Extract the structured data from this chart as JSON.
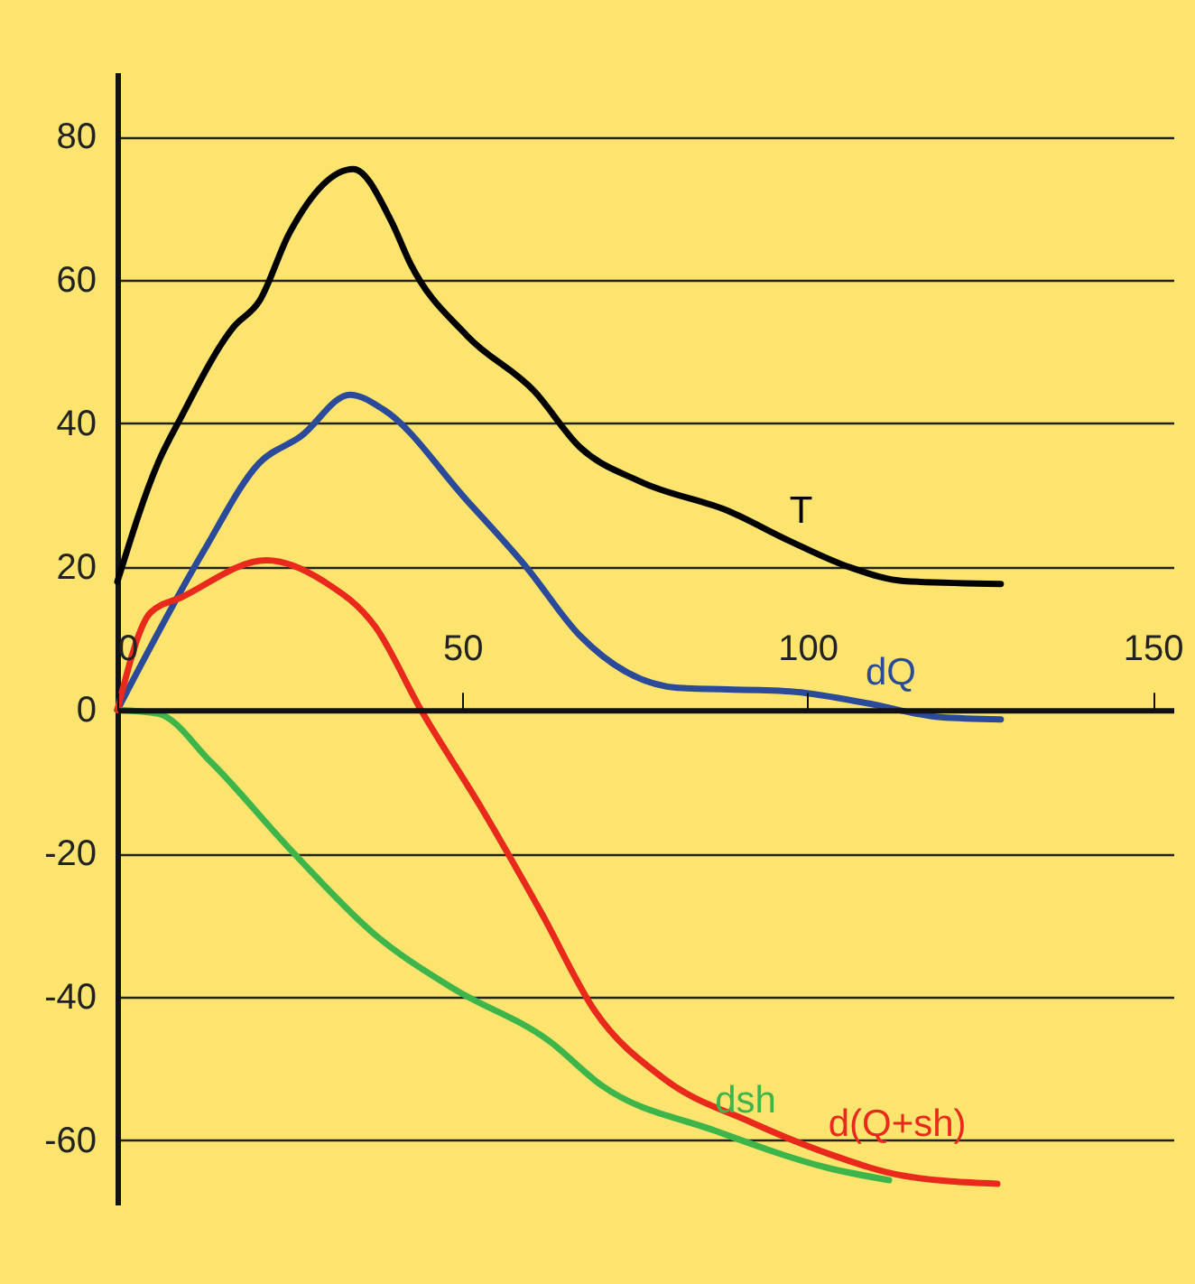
{
  "chart_data": {
    "type": "line",
    "xlim": [
      0,
      153
    ],
    "ylim": [
      -69,
      89
    ],
    "xticks": [
      0,
      50,
      100,
      150
    ],
    "yticks": [
      -60,
      -40,
      -20,
      0,
      20,
      40,
      60,
      80
    ],
    "grid": "y",
    "legend": false,
    "marker": "none",
    "line_style": "solid",
    "series": [
      {
        "name": "T",
        "color": "#000000",
        "x": [
          0,
          5.9,
          9.2,
          16.8,
          20.6,
          24.9,
          34.2,
          39.7,
          42.4,
          50.6,
          60.4,
          67,
          75.7,
          88.7,
          97.4,
          106.2,
          113.9,
          128
        ],
        "values": [
          17.9,
          34.5,
          40.8,
          53.4,
          57.1,
          66.5,
          75.5,
          68.2,
          62.4,
          52.3,
          44.5,
          36.7,
          31.9,
          27.7,
          23.6,
          19.9,
          18,
          17.6
        ]
      },
      {
        "name": "dQ",
        "color": "#2c4a9a",
        "x": [
          0,
          12.4,
          20.6,
          26.6,
          33.7,
          38.6,
          50.6,
          59.3,
          67,
          81.2,
          97.5,
          108.4,
          119.3,
          128
        ],
        "values": [
          0,
          22,
          34.5,
          38.2,
          44,
          41.9,
          29.3,
          19.9,
          10.4,
          3.1,
          2.6,
          1,
          -1,
          -1.3
        ]
      },
      {
        "name": "dsh",
        "color": "#3db54a",
        "x": [
          0,
          5.9,
          13.6,
          25.5,
          37.4,
          48.4,
          62.6,
          70.2,
          86.6,
          103,
          111.8
        ],
        "values": [
          0,
          -0.5,
          -7.3,
          -19.9,
          -31.4,
          -38.7,
          -46.2,
          -52.4,
          -58.7,
          -63.9,
          -65.6
        ]
      },
      {
        "name": "d(Q+sh)",
        "color": "#e8291c",
        "x": [
          0,
          4.8,
          9.2,
          21.6,
          30,
          37.4,
          44,
          52.7,
          61.5,
          69.2,
          79,
          92,
          103,
          114,
          127.5
        ],
        "values": [
          0,
          13.6,
          15.7,
          20.9,
          17.9,
          11.6,
          0,
          -13.6,
          -28.4,
          -42,
          -51.3,
          -57.6,
          -61.9,
          -65,
          -66.1
        ]
      }
    ]
  }
}
